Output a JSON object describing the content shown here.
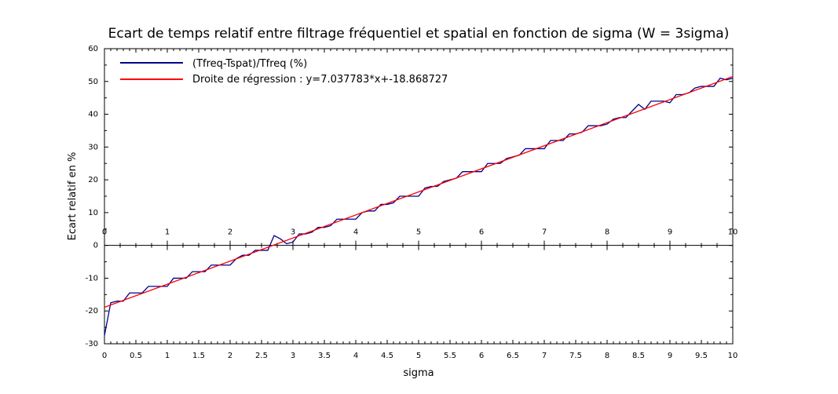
{
  "chart_data": {
    "type": "line",
    "title": "Ecart de temps relatif entre filtrage fréquentiel et spatial en fonction de sigma (W = 3sigma)",
    "xlabel": "sigma",
    "ylabel": "Ecart relatif en %",
    "xlim": [
      0,
      10
    ],
    "ylim": [
      -30,
      60
    ],
    "x_ticks": [
      "0",
      "0.5",
      "1",
      "1.5",
      "2",
      "2.5",
      "3",
      "3.5",
      "4",
      "4.5",
      "5",
      "5.5",
      "6",
      "6.5",
      "7",
      "7.5",
      "8",
      "8.5",
      "9",
      "9.5",
      "10"
    ],
    "x_zero_ticks": [
      "0",
      "1",
      "2",
      "3",
      "4",
      "5",
      "6",
      "7",
      "8",
      "9",
      "10"
    ],
    "y_ticks": [
      "-30",
      "-20",
      "-10",
      "0",
      "10",
      "20",
      "30",
      "40",
      "50",
      "60"
    ],
    "grid": false,
    "legend_position": "top-left",
    "series": [
      {
        "name": "(Tfreq-Tspat)/Tfreq (%)",
        "color": "#00008b",
        "x": [
          0,
          0.1,
          0.2,
          0.3,
          0.4,
          0.5,
          0.6,
          0.7,
          0.8,
          0.9,
          1.0,
          1.1,
          1.2,
          1.3,
          1.4,
          1.5,
          1.6,
          1.7,
          1.8,
          1.9,
          2.0,
          2.1,
          2.2,
          2.3,
          2.4,
          2.5,
          2.6,
          2.7,
          2.8,
          2.9,
          3.0,
          3.1,
          3.2,
          3.3,
          3.4,
          3.5,
          3.6,
          3.7,
          3.8,
          3.9,
          4.0,
          4.1,
          4.2,
          4.3,
          4.4,
          4.5,
          4.6,
          4.7,
          4.8,
          4.9,
          5.0,
          5.1,
          5.2,
          5.3,
          5.4,
          5.5,
          5.6,
          5.7,
          5.8,
          5.9,
          6.0,
          6.1,
          6.2,
          6.3,
          6.4,
          6.5,
          6.6,
          6.7,
          6.8,
          6.9,
          7.0,
          7.1,
          7.2,
          7.3,
          7.4,
          7.5,
          7.6,
          7.7,
          7.8,
          7.9,
          8.0,
          8.1,
          8.2,
          8.3,
          8.4,
          8.5,
          8.6,
          8.7,
          8.8,
          8.9,
          9.0,
          9.1,
          9.2,
          9.3,
          9.4,
          9.5,
          9.6,
          9.7,
          9.8,
          9.9,
          10.0
        ],
        "y": [
          -27.5,
          -17.5,
          -17.0,
          -17.0,
          -14.5,
          -14.5,
          -14.5,
          -12.5,
          -12.5,
          -12.5,
          -12.5,
          -10.0,
          -10.0,
          -10.0,
          -8.0,
          -8.0,
          -8.0,
          -6.0,
          -6.0,
          -6.0,
          -6.0,
          -4.0,
          -3.0,
          -3.0,
          -1.5,
          -1.5,
          -1.5,
          3.0,
          2.0,
          0.5,
          1.0,
          3.5,
          3.5,
          4.0,
          5.5,
          5.5,
          6.0,
          8.0,
          8.0,
          8.0,
          8.0,
          10.0,
          10.5,
          10.5,
          12.5,
          12.5,
          13.0,
          15.0,
          15.0,
          15.0,
          15.0,
          17.5,
          18.0,
          18.0,
          19.5,
          20.0,
          20.5,
          22.5,
          22.5,
          22.5,
          22.5,
          25.0,
          25.0,
          25.0,
          26.5,
          27.0,
          27.5,
          29.5,
          29.5,
          29.5,
          29.5,
          32.0,
          32.0,
          32.0,
          34.0,
          34.0,
          34.5,
          36.5,
          36.5,
          36.5,
          37.0,
          38.5,
          39.0,
          39.0,
          41.0,
          43.0,
          41.5,
          44.0,
          44.0,
          44.0,
          43.5,
          46.0,
          46.0,
          46.5,
          48.0,
          48.5,
          48.5,
          48.5,
          51.0,
          50.5,
          51.0
        ]
      },
      {
        "name": "Droite de régression : y=7.037783*x+-18.868727",
        "color": "#ff0000",
        "slope": 7.037783,
        "intercept": -18.868727
      }
    ]
  }
}
